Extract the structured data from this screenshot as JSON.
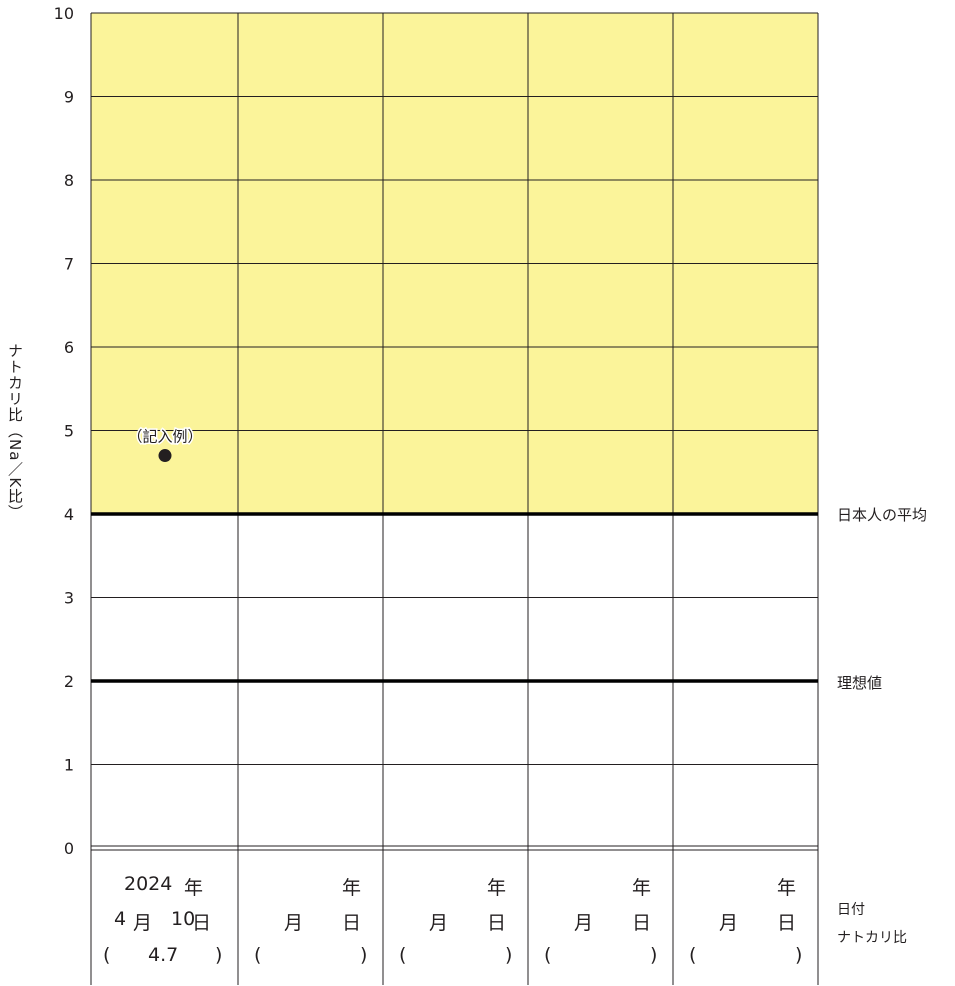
{
  "chart_data": {
    "type": "scatter",
    "ylabel": "ナトカリ比（Na／K比）",
    "ylim": [
      0,
      10
    ],
    "yticks": [
      "0",
      "1",
      "2",
      "3",
      "4",
      "5",
      "6",
      "7",
      "8",
      "9",
      "10"
    ],
    "shaded_range": [
      4,
      10
    ],
    "shade_color": "#fbf49a",
    "reference_lines": [
      {
        "value": 4,
        "label": "日本人の平均"
      },
      {
        "value": 2,
        "label": "理想値"
      }
    ],
    "points": [
      {
        "column": 0,
        "y": 4.7,
        "annotation": "（記入例）"
      }
    ],
    "row_labels": [
      "日付",
      "ナトカリ比"
    ],
    "columns": [
      {
        "year": "2024",
        "year_unit": "年",
        "month": "4",
        "month_unit": "月",
        "day": "10",
        "day_unit": "日",
        "value": "4.7",
        "open": "(",
        "close": ")"
      },
      {
        "year": "",
        "year_unit": "年",
        "month": "",
        "month_unit": "月",
        "day": "",
        "day_unit": "日",
        "value": "",
        "open": "(",
        "close": ")"
      },
      {
        "year": "",
        "year_unit": "年",
        "month": "",
        "month_unit": "月",
        "day": "",
        "day_unit": "日",
        "value": "",
        "open": "(",
        "close": ")"
      },
      {
        "year": "",
        "year_unit": "年",
        "month": "",
        "month_unit": "月",
        "day": "",
        "day_unit": "日",
        "value": "",
        "open": "(",
        "close": ")"
      },
      {
        "year": "",
        "year_unit": "年",
        "month": "",
        "month_unit": "月",
        "day": "",
        "day_unit": "日",
        "value": "",
        "open": "(",
        "close": ")"
      }
    ]
  }
}
